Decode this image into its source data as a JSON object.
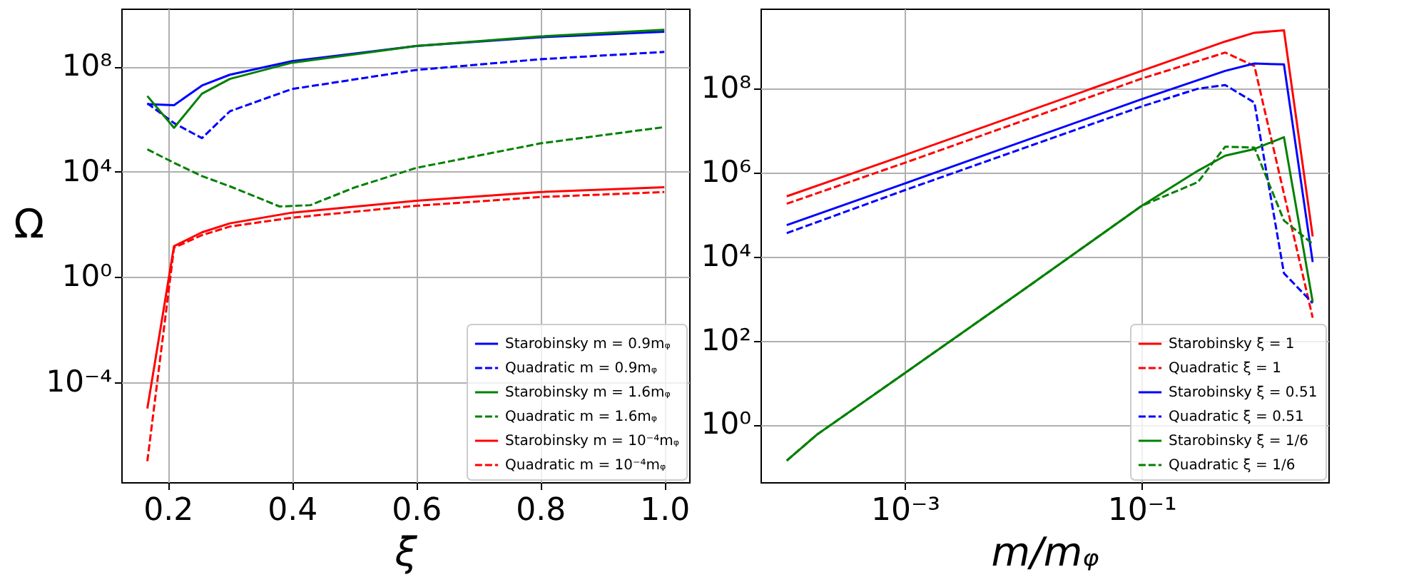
{
  "chart_data": [
    {
      "type": "line",
      "xlabel": "ξ",
      "ylabel": "Ω",
      "log": "y",
      "grid": true,
      "legend": "bottom right",
      "xlim": [
        0.125,
        1.04
      ],
      "xticks": [
        {
          "value": 0.2,
          "label": "0.2"
        },
        {
          "value": 0.4,
          "label": "0.4"
        },
        {
          "value": 0.6,
          "label": "0.6"
        },
        {
          "value": 0.8,
          "label": "0.8"
        },
        {
          "value": 1,
          "label": "1.0"
        }
      ],
      "ylim": [
        1.6e-08,
        16000000000.0
      ],
      "yticks": [
        {
          "value": 0.0001,
          "label": "10⁻⁴"
        },
        {
          "value": 1,
          "label": "10⁰"
        },
        {
          "value": 10000,
          "label": "10⁴"
        },
        {
          "value": 100000000,
          "label": "10⁸"
        }
      ],
      "series": [
        {
          "name": "Starobinsky m = 0.9mᵩ",
          "color": "#0000ff",
          "line_style": "solid",
          "x": [
            0.167,
            0.21,
            0.255,
            0.3,
            0.4,
            0.6,
            0.8,
            1.0
          ],
          "values": [
            3700000.0,
            3400000.0,
            19000000.0,
            49000000.0,
            160000000.0,
            600000000.0,
            1300000000.0,
            2100000000.0
          ]
        },
        {
          "name": "Quadratic m = 0.9mᵩ",
          "color": "#0000ff",
          "line_style": "dashed",
          "x": [
            0.167,
            0.21,
            0.255,
            0.3,
            0.4,
            0.6,
            0.8,
            1.0
          ],
          "values": [
            4000000.0,
            710000.0,
            190000.0,
            2000000.0,
            14000000.0,
            74000000.0,
            190000000.0,
            360000000.0
          ]
        },
        {
          "name": "Starobinsky m = 1.6mᵩ",
          "color": "#008000",
          "line_style": "solid",
          "x": [
            0.167,
            0.21,
            0.255,
            0.3,
            0.4,
            0.6,
            0.8,
            1.0
          ],
          "values": [
            7600000.0,
            470000.0,
            9300000.0,
            34000000.0,
            140000000.0,
            600000000.0,
            1400000000.0,
            2500000000.0
          ]
        },
        {
          "name": "Quadratic m = 1.6mᵩ",
          "color": "#008000",
          "line_style": "dashed",
          "x": [
            0.167,
            0.21,
            0.255,
            0.3,
            0.38,
            0.43,
            0.5,
            0.6,
            0.8,
            1.0
          ],
          "values": [
            71000.0,
            22000.0,
            6900,
            2800,
            480,
            540,
            2500,
            14000,
            120000.0,
            500000.0
          ]
        },
        {
          "name": "Starobinsky m = 10⁻⁴mᵩ",
          "color": "#ff0000",
          "line_style": "solid",
          "x": [
            0.167,
            0.21,
            0.255,
            0.3,
            0.4,
            0.6,
            0.8,
            1.0
          ],
          "values": [
            1e-05,
            15,
            50,
            110,
            280,
            790,
            1700,
            2600
          ]
        },
        {
          "name": "Quadratic m = 10⁻⁴mᵩ",
          "color": "#ff0000",
          "line_style": "dashed",
          "x": [
            0.167,
            0.21,
            0.255,
            0.3,
            0.4,
            0.6,
            0.8,
            1.0
          ],
          "values": [
            1e-07,
            13,
            39,
            83,
            180,
            510,
            1100,
            1700
          ]
        }
      ]
    },
    {
      "type": "line",
      "xlabel": "m/mᵩ",
      "log": "xy",
      "grid": true,
      "legend": "bottom right",
      "xlim": [
        6e-05,
        3.8
      ],
      "xticks": [
        {
          "value": 0.001,
          "label": "10⁻³"
        },
        {
          "value": 0.1,
          "label": "10⁻¹"
        }
      ],
      "ylim": [
        0.043,
        7900000000.0
      ],
      "yticks": [
        {
          "value": 1,
          "label": "10⁰"
        },
        {
          "value": 100,
          "label": "10²"
        },
        {
          "value": 10000,
          "label": "10⁴"
        },
        {
          "value": 1000000,
          "label": "10⁶"
        },
        {
          "value": 100000000,
          "label": "10⁸"
        }
      ],
      "series": [
        {
          "name": "Starobinsky ξ = 1",
          "color": "#ff0000",
          "line_style": "solid",
          "x": [
            0.0001,
            0.001,
            0.1,
            0.51,
            0.9,
            1.6,
            2.8
          ],
          "values": [
            270000.0,
            2600000.0,
            260000000.0,
            1300000000.0,
            2100000000.0,
            2400000000.0,
            30000.0
          ]
        },
        {
          "name": "Quadratic ξ = 1",
          "color": "#ff0000",
          "line_style": "dashed",
          "x": [
            0.0001,
            0.001,
            0.1,
            0.51,
            0.9,
            2.8
          ],
          "values": [
            180000.0,
            1700000.0,
            170000000.0,
            710000000.0,
            340000000.0,
            350
          ]
        },
        {
          "name": "Starobinsky ξ = 0.51",
          "color": "#0000ff",
          "line_style": "solid",
          "x": [
            0.0001,
            0.001,
            0.1,
            0.51,
            0.9,
            1.6,
            2.8
          ],
          "values": [
            56000.0,
            550000.0,
            55000000.0,
            260000000.0,
            390000000.0,
            370000000.0,
            7400
          ]
        },
        {
          "name": "Quadratic ξ = 0.51",
          "color": "#0000ff",
          "line_style": "dashed",
          "x": [
            0.0001,
            0.001,
            0.1,
            0.3,
            0.51,
            0.9,
            1.6,
            2.8
          ],
          "values": [
            36000.0,
            380000.0,
            37000000.0,
            98000000.0,
            120000000.0,
            46000000.0,
            4000,
            780
          ]
        },
        {
          "name": "Starobinsky ξ = 1/6",
          "color": "#008000",
          "line_style": "solid",
          "x": [
            0.0001,
            0.00018,
            0.001,
            0.01,
            0.1,
            0.3,
            0.51,
            0.9,
            1.6,
            2.8
          ],
          "values": [
            0.14,
            0.58,
            17,
            1600,
            160000.0,
            1100000.0,
            2500000.0,
            3600000.0,
            6900000.0,
            830
          ]
        },
        {
          "name": "Quadratic ξ = 1/6",
          "color": "#008000",
          "line_style": "dashed",
          "x": [
            0.0001,
            0.00018,
            0.001,
            0.01,
            0.1,
            0.3,
            0.51,
            0.9,
            1.6,
            2.8
          ],
          "values": [
            0.14,
            0.58,
            17,
            1600,
            160000.0,
            590000.0,
            4100000.0,
            3900000.0,
            72000.0,
            20000.0
          ]
        }
      ]
    }
  ]
}
